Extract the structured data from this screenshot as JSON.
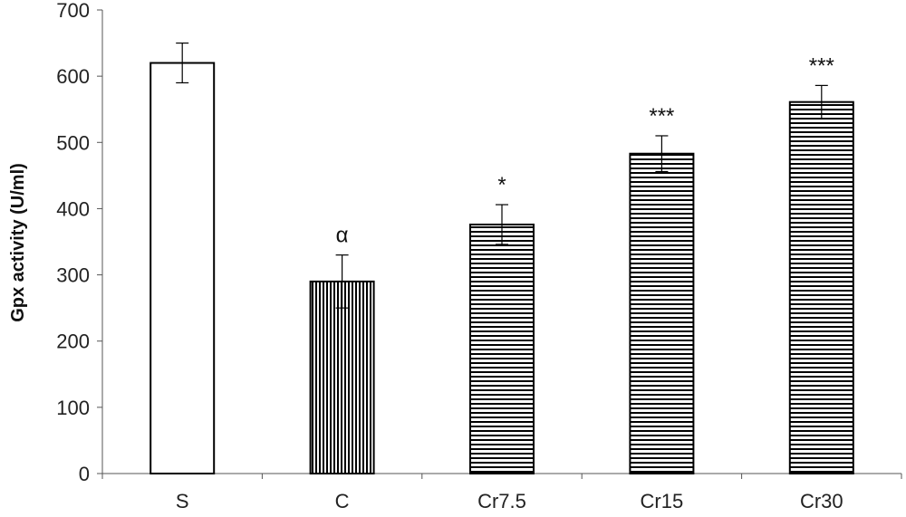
{
  "chart_data": {
    "type": "bar",
    "title": "",
    "xlabel": "",
    "ylabel": "Gpx activity (U/ml)",
    "ylim": [
      0,
      700
    ],
    "yticks": [
      0,
      100,
      200,
      300,
      400,
      500,
      600,
      700
    ],
    "grid": false,
    "categories": [
      "S",
      "C",
      "Cr7.5",
      "Cr15",
      "Cr30"
    ],
    "values": [
      620,
      290,
      376,
      483,
      561
    ],
    "errors": [
      30,
      40,
      30,
      27,
      25
    ],
    "annotations": [
      "",
      "α",
      "*",
      "***",
      "***"
    ],
    "fills": [
      "white",
      "vertical-stripes",
      "horizontal-stripes",
      "horizontal-stripes",
      "horizontal-stripes"
    ]
  }
}
